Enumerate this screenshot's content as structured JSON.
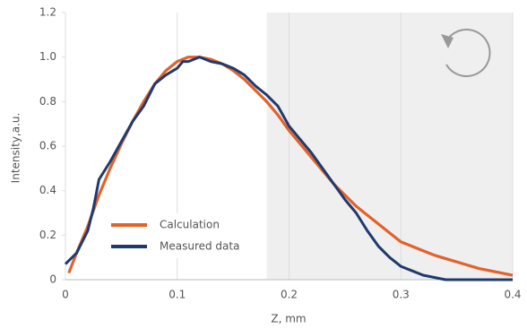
{
  "chart_data": {
    "type": "line",
    "xlabel": "Z, mm",
    "ylabel": "Intensity,a.u.",
    "xlim": [
      0,
      0.4
    ],
    "xticks": [
      0,
      0.1,
      0.2,
      0.3,
      0.4
    ],
    "ylim": [
      0,
      1.2
    ],
    "yticks": [
      0,
      0.2,
      0.4,
      0.6,
      0.8,
      {
        "value": 1,
        "label": "1.0"
      },
      1.2
    ],
    "grid": true,
    "shaded_xrange": [
      0.18,
      0.4
    ],
    "shade_color": "#efefef",
    "series": [
      {
        "name": "Calculation",
        "color": "#e2622a",
        "x": [
          0.003,
          0.01,
          0.02,
          0.03,
          0.04,
          0.05,
          0.06,
          0.07,
          0.08,
          0.09,
          0.1,
          0.11,
          0.12,
          0.13,
          0.14,
          0.15,
          0.16,
          0.17,
          0.18,
          0.19,
          0.2,
          0.21,
          0.22,
          0.23,
          0.24,
          0.25,
          0.26,
          0.27,
          0.28,
          0.29,
          0.3,
          0.31,
          0.32,
          0.33,
          0.34,
          0.35,
          0.36,
          0.37,
          0.38,
          0.39,
          0.4
        ],
        "values": [
          0.03,
          0.12,
          0.24,
          0.38,
          0.5,
          0.61,
          0.71,
          0.8,
          0.88,
          0.94,
          0.98,
          1.0,
          1.0,
          0.99,
          0.97,
          0.94,
          0.9,
          0.85,
          0.8,
          0.74,
          0.67,
          0.61,
          0.55,
          0.49,
          0.43,
          0.38,
          0.33,
          0.29,
          0.25,
          0.21,
          0.17,
          0.15,
          0.13,
          0.11,
          0.095,
          0.08,
          0.065,
          0.05,
          0.04,
          0.03,
          0.02
        ]
      },
      {
        "name": "Measured data",
        "color": "#1f3a6e",
        "x": [
          0,
          0.01,
          0.02,
          0.025,
          0.03,
          0.04,
          0.05,
          0.06,
          0.07,
          0.08,
          0.09,
          0.1,
          0.105,
          0.11,
          0.12,
          0.13,
          0.14,
          0.15,
          0.16,
          0.17,
          0.18,
          0.19,
          0.2,
          0.21,
          0.22,
          0.23,
          0.24,
          0.25,
          0.26,
          0.27,
          0.28,
          0.29,
          0.3,
          0.31,
          0.32,
          0.33,
          0.34,
          0.36,
          0.4
        ],
        "values": [
          0.07,
          0.12,
          0.22,
          0.32,
          0.45,
          0.53,
          0.62,
          0.71,
          0.78,
          0.88,
          0.92,
          0.95,
          0.98,
          0.98,
          1.0,
          0.98,
          0.97,
          0.95,
          0.92,
          0.87,
          0.83,
          0.78,
          0.69,
          0.63,
          0.57,
          0.5,
          0.43,
          0.36,
          0.3,
          0.22,
          0.15,
          0.1,
          0.06,
          0.04,
          0.02,
          0.01,
          0,
          0,
          0
        ]
      }
    ]
  }
}
